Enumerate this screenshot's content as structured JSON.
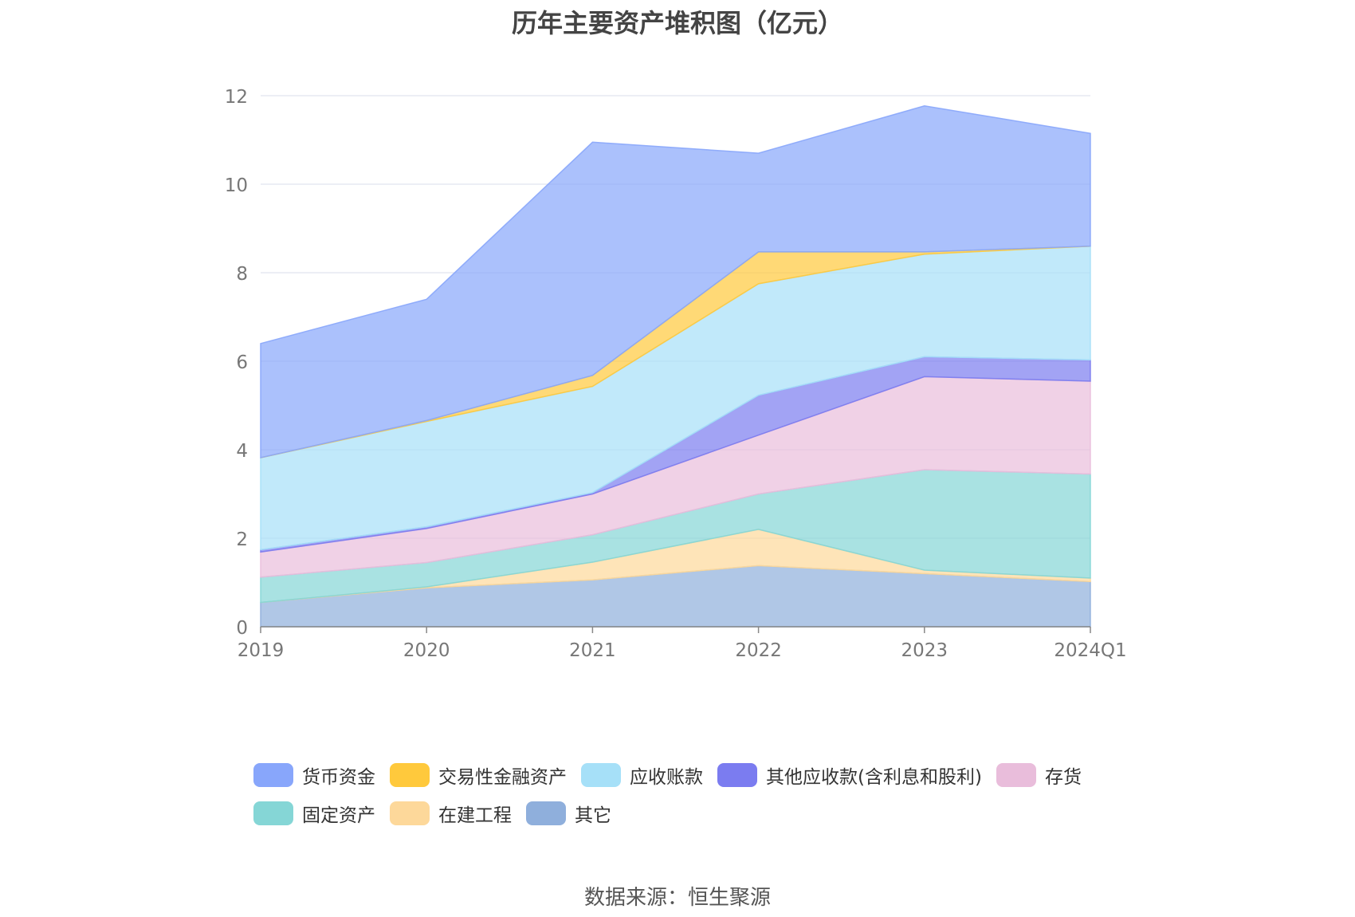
{
  "chart_data": {
    "type": "area",
    "stacked": true,
    "title": "历年主要资产堆积图（亿元）",
    "categories": [
      "2019",
      "2020",
      "2021",
      "2022",
      "2023",
      "2024Q1"
    ],
    "ylim": [
      0,
      12
    ],
    "yticks": [
      0,
      2,
      4,
      6,
      8,
      10,
      12
    ],
    "grid": true,
    "legend_position": "bottom",
    "series": [
      {
        "name": "其它",
        "color": "#8fafdc",
        "values": [
          0.55,
          0.88,
          1.06,
          1.38,
          1.2,
          1.02
        ]
      },
      {
        "name": "在建工程",
        "color": "#fdd89a",
        "values": [
          0.0,
          0.02,
          0.4,
          0.82,
          0.08,
          0.08
        ]
      },
      {
        "name": "固定资产",
        "color": "#85d6d6",
        "values": [
          0.57,
          0.55,
          0.62,
          0.8,
          2.27,
          2.35
        ]
      },
      {
        "name": "存货",
        "color": "#e9bddb",
        "values": [
          0.57,
          0.77,
          0.92,
          1.33,
          2.1,
          2.1
        ]
      },
      {
        "name": "其他应收款(含利息和股利)",
        "color": "#7b7cf0",
        "values": [
          0.05,
          0.04,
          0.03,
          0.9,
          0.45,
          0.48
        ]
      },
      {
        "name": "应收账款",
        "color": "#a6e0f8",
        "values": [
          2.08,
          2.38,
          2.4,
          2.52,
          2.32,
          2.57
        ]
      },
      {
        "name": "交易性金融资产",
        "color": "#ffc93c",
        "values": [
          0.0,
          0.02,
          0.25,
          0.72,
          0.05,
          0.0
        ]
      },
      {
        "name": "货币资金",
        "color": "#88a6fb",
        "values": [
          2.58,
          2.74,
          5.27,
          2.23,
          3.3,
          2.55
        ]
      }
    ]
  },
  "legend_order": [
    "货币资金",
    "交易性金融资产",
    "应收账款",
    "其他应收款(含利息和股利)",
    "存货",
    "固定资产",
    "在建工程",
    "其它"
  ],
  "source_text": "数据来源：恒生聚源"
}
